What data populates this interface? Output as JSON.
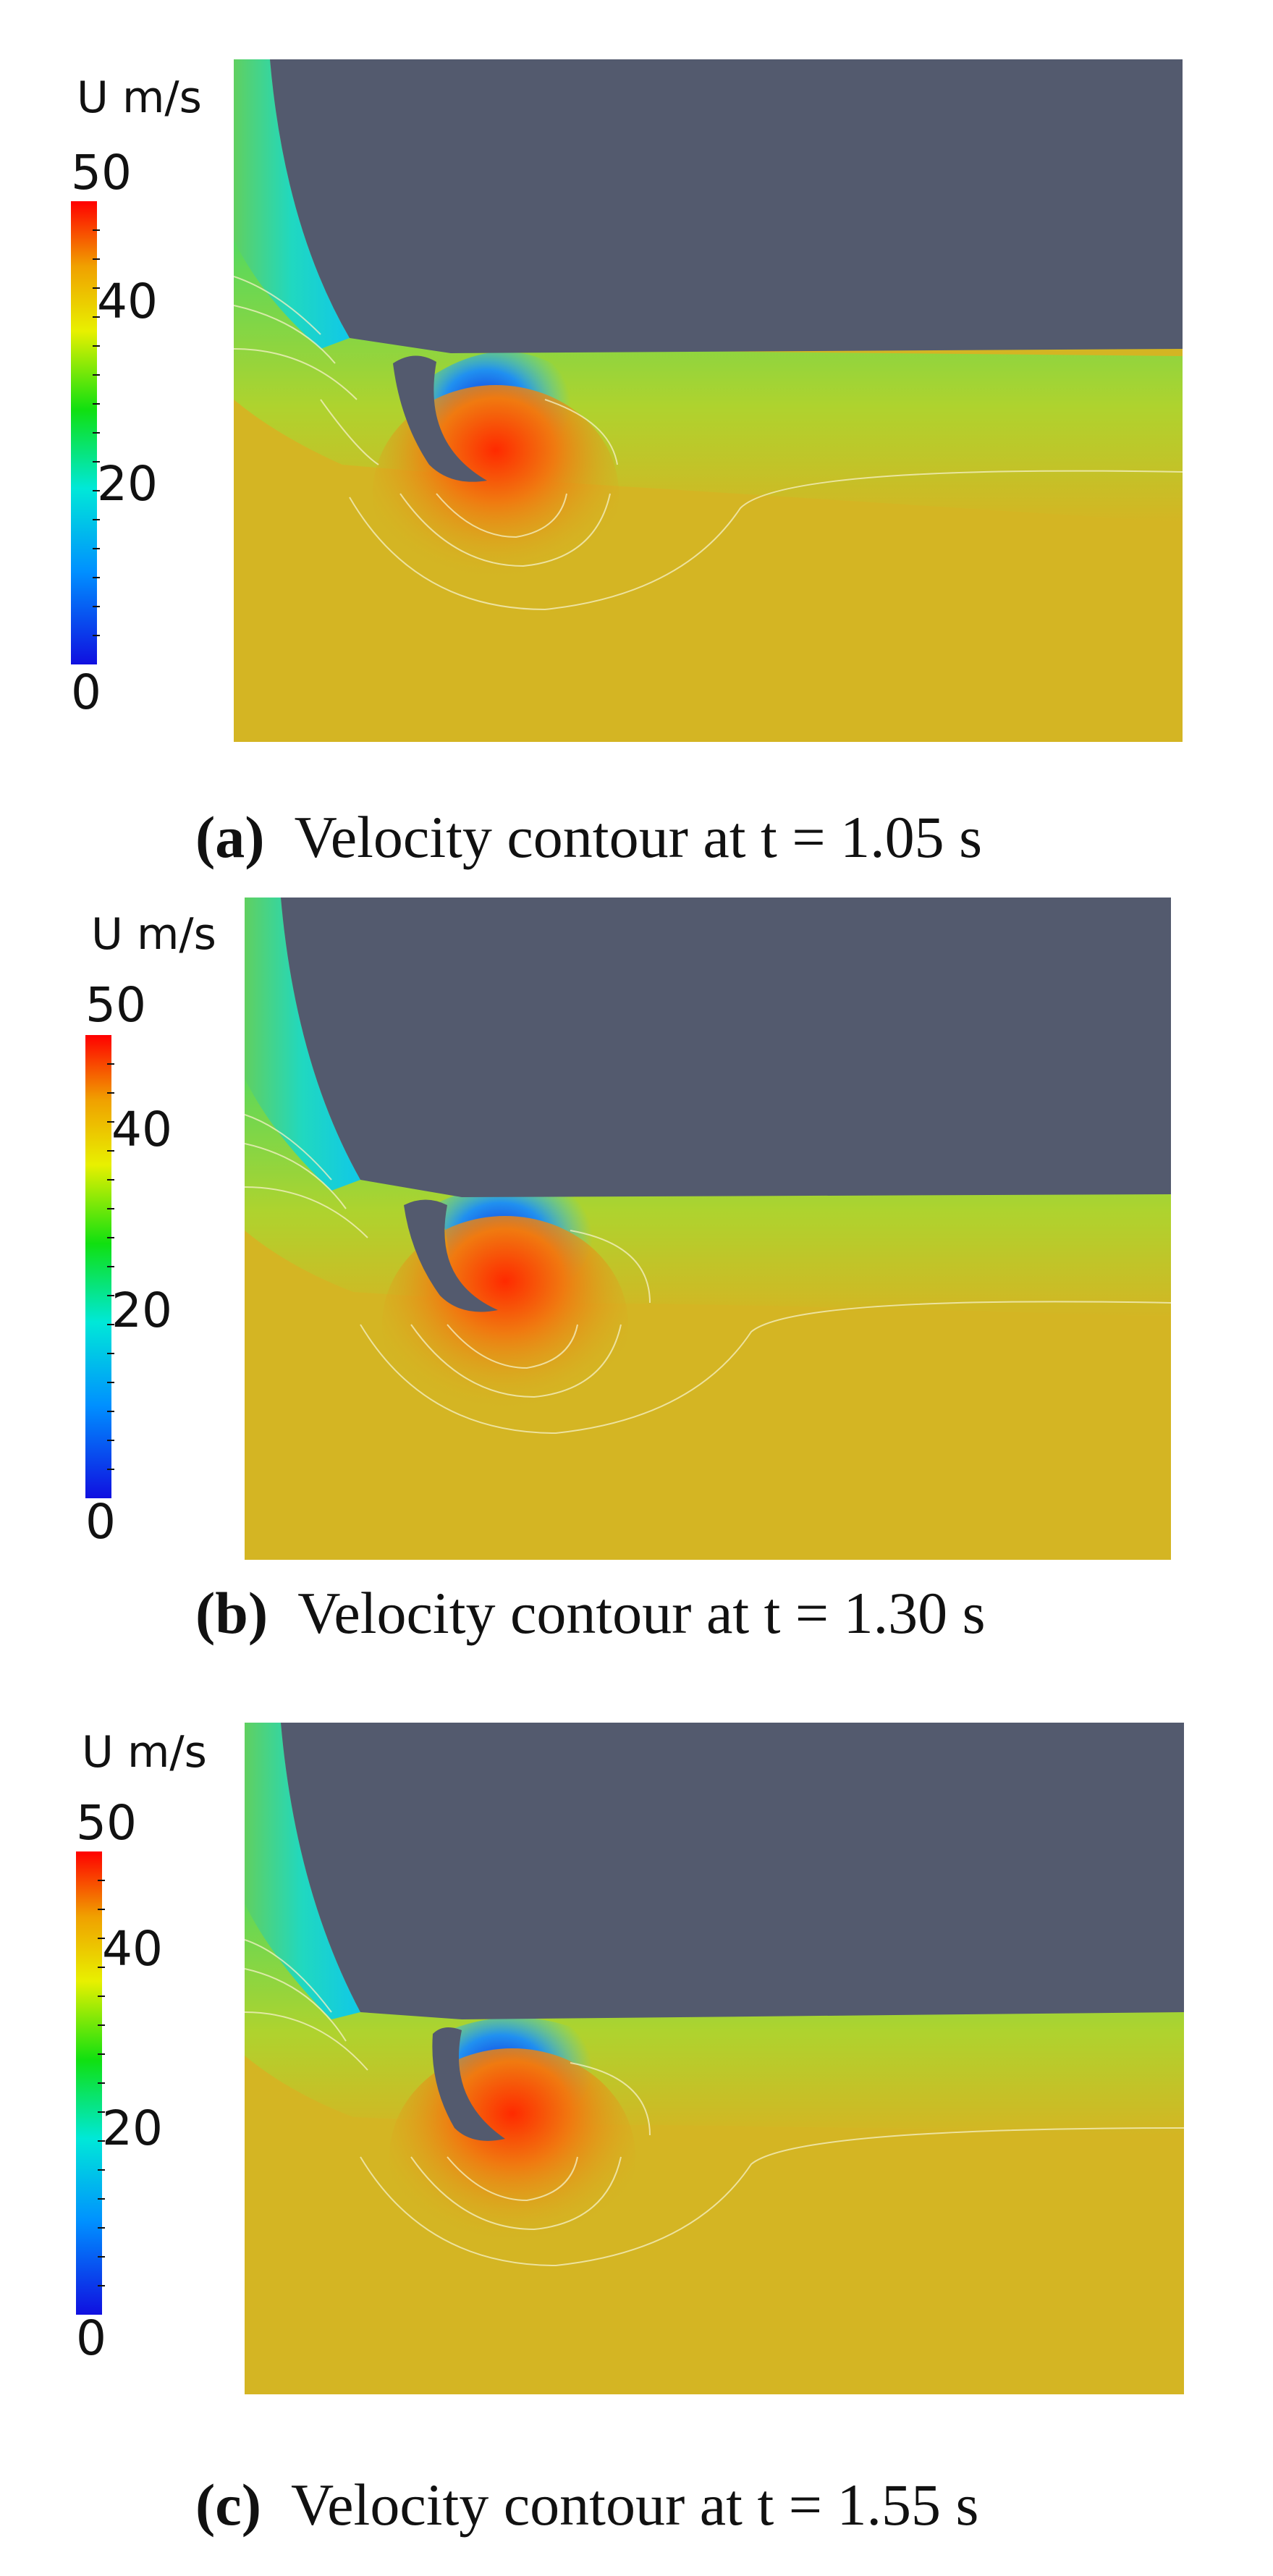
{
  "panels": [
    {
      "colorbar": {
        "unit_label": "U m/s",
        "max_label": "50",
        "mid1_label": "40",
        "mid2_label": "20",
        "min_label": "0"
      },
      "caption": {
        "label": "(a)",
        "text": "Velocity contour at t = 1.05 s"
      }
    },
    {
      "colorbar": {
        "unit_label": "U m/s",
        "max_label": "50",
        "mid1_label": "40",
        "mid2_label": "20",
        "min_label": "0"
      },
      "caption": {
        "label": "(b)",
        "text": "Velocity contour at t = 1.30 s"
      }
    },
    {
      "colorbar": {
        "unit_label": "U m/s",
        "max_label": "50",
        "mid1_label": "40",
        "mid2_label": "20",
        "min_label": "0"
      },
      "caption": {
        "label": "(c)",
        "text": "Velocity contour at t = 1.55 s"
      }
    }
  ],
  "colors": {
    "vehicle_body": "#535a6e",
    "free_stream": "#d4b523",
    "colormap": [
      "#1010e0",
      "#00ffff",
      "#00e000",
      "#f0f000",
      "#ff0000"
    ]
  }
}
